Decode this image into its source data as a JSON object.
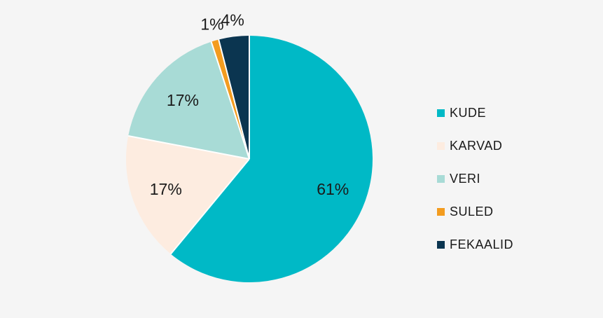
{
  "chart_data": {
    "type": "pie",
    "start_angle_deg": 0,
    "direction": "clockwise",
    "legend_position": "right",
    "slices": [
      {
        "label": "KUDE",
        "value": 61,
        "display": "61%",
        "color": "#00b9c6"
      },
      {
        "label": "KARVAD",
        "value": 17,
        "display": "17%",
        "color": "#fdece0"
      },
      {
        "label": "VERI",
        "value": 17,
        "display": "17%",
        "color": "#a8dbd6"
      },
      {
        "label": "SULED",
        "value": 1,
        "display": "1%",
        "color": "#f39c1f"
      },
      {
        "label": "FEKAALID",
        "value": 4,
        "display": "4%",
        "color": "#0b3550"
      }
    ]
  }
}
